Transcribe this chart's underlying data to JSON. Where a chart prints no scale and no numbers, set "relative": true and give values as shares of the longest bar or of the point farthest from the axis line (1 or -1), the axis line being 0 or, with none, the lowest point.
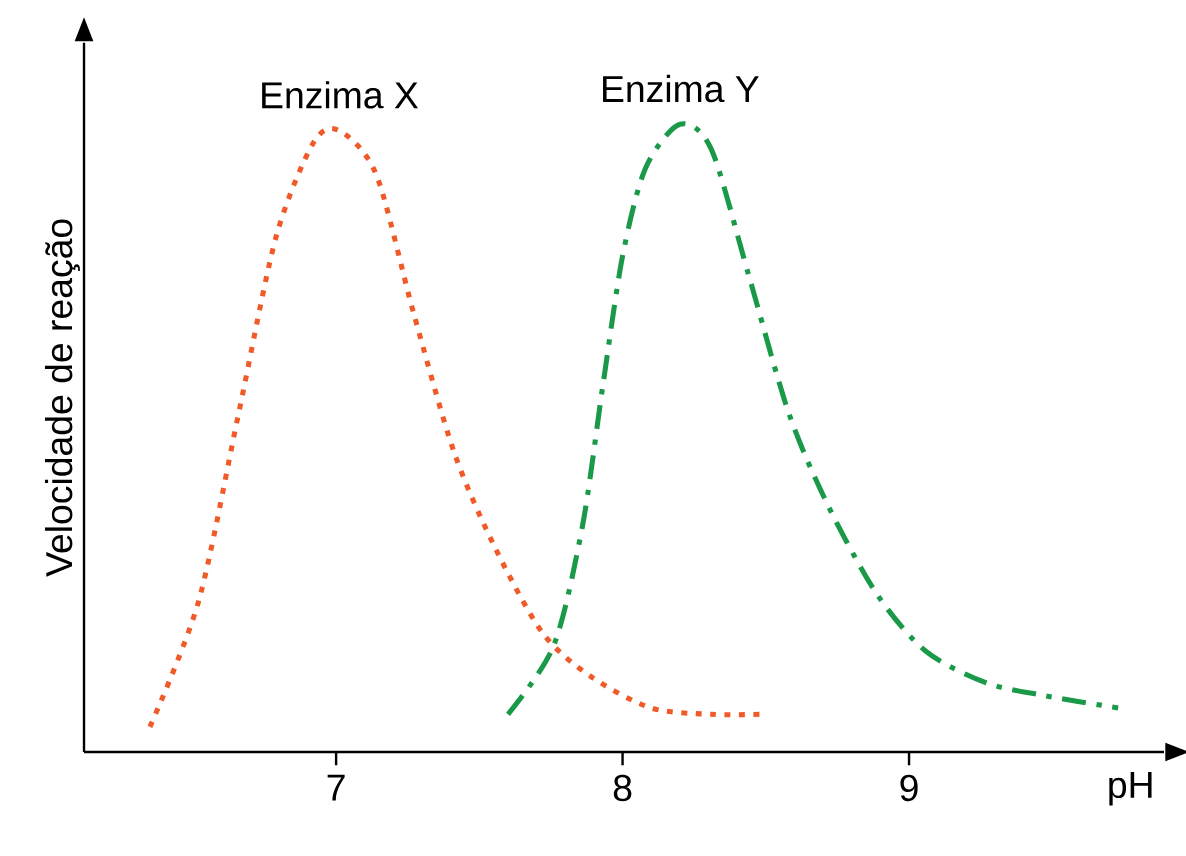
{
  "chart_data": {
    "type": "line",
    "relative": true,
    "xlabel": "pH",
    "ylabel": "Velocidade de reação",
    "xlim": [
      6.12,
      9.89
    ],
    "xticks": [
      7,
      8,
      9
    ],
    "tick_labels": "x",
    "grid": false,
    "marker": "none",
    "series": [
      {
        "name": "Enzima X",
        "color": "#f05a28",
        "line_style": "dotted",
        "x": [
          6.35,
          6.52,
          6.66,
          6.79,
          6.92,
          7.01,
          7.14,
          7.27,
          7.41,
          7.55,
          7.72,
          7.89,
          8.1,
          8.31,
          8.48
        ],
        "values": [
          0.04,
          0.24,
          0.54,
          0.82,
          0.97,
          0.99,
          0.92,
          0.7,
          0.48,
          0.33,
          0.19,
          0.12,
          0.07,
          0.06,
          0.06
        ]
      },
      {
        "name": "Enzima Y",
        "color": "#1a9a48",
        "line_style": "dashed",
        "x": [
          7.6,
          7.76,
          7.86,
          7.93,
          8.0,
          8.08,
          8.2,
          8.31,
          8.44,
          8.58,
          8.72,
          8.89,
          9.06,
          9.27,
          9.47,
          9.73
        ],
        "values": [
          0.06,
          0.17,
          0.36,
          0.58,
          0.79,
          0.93,
          1.0,
          0.96,
          0.76,
          0.54,
          0.39,
          0.25,
          0.16,
          0.11,
          0.09,
          0.07
        ]
      }
    ]
  }
}
